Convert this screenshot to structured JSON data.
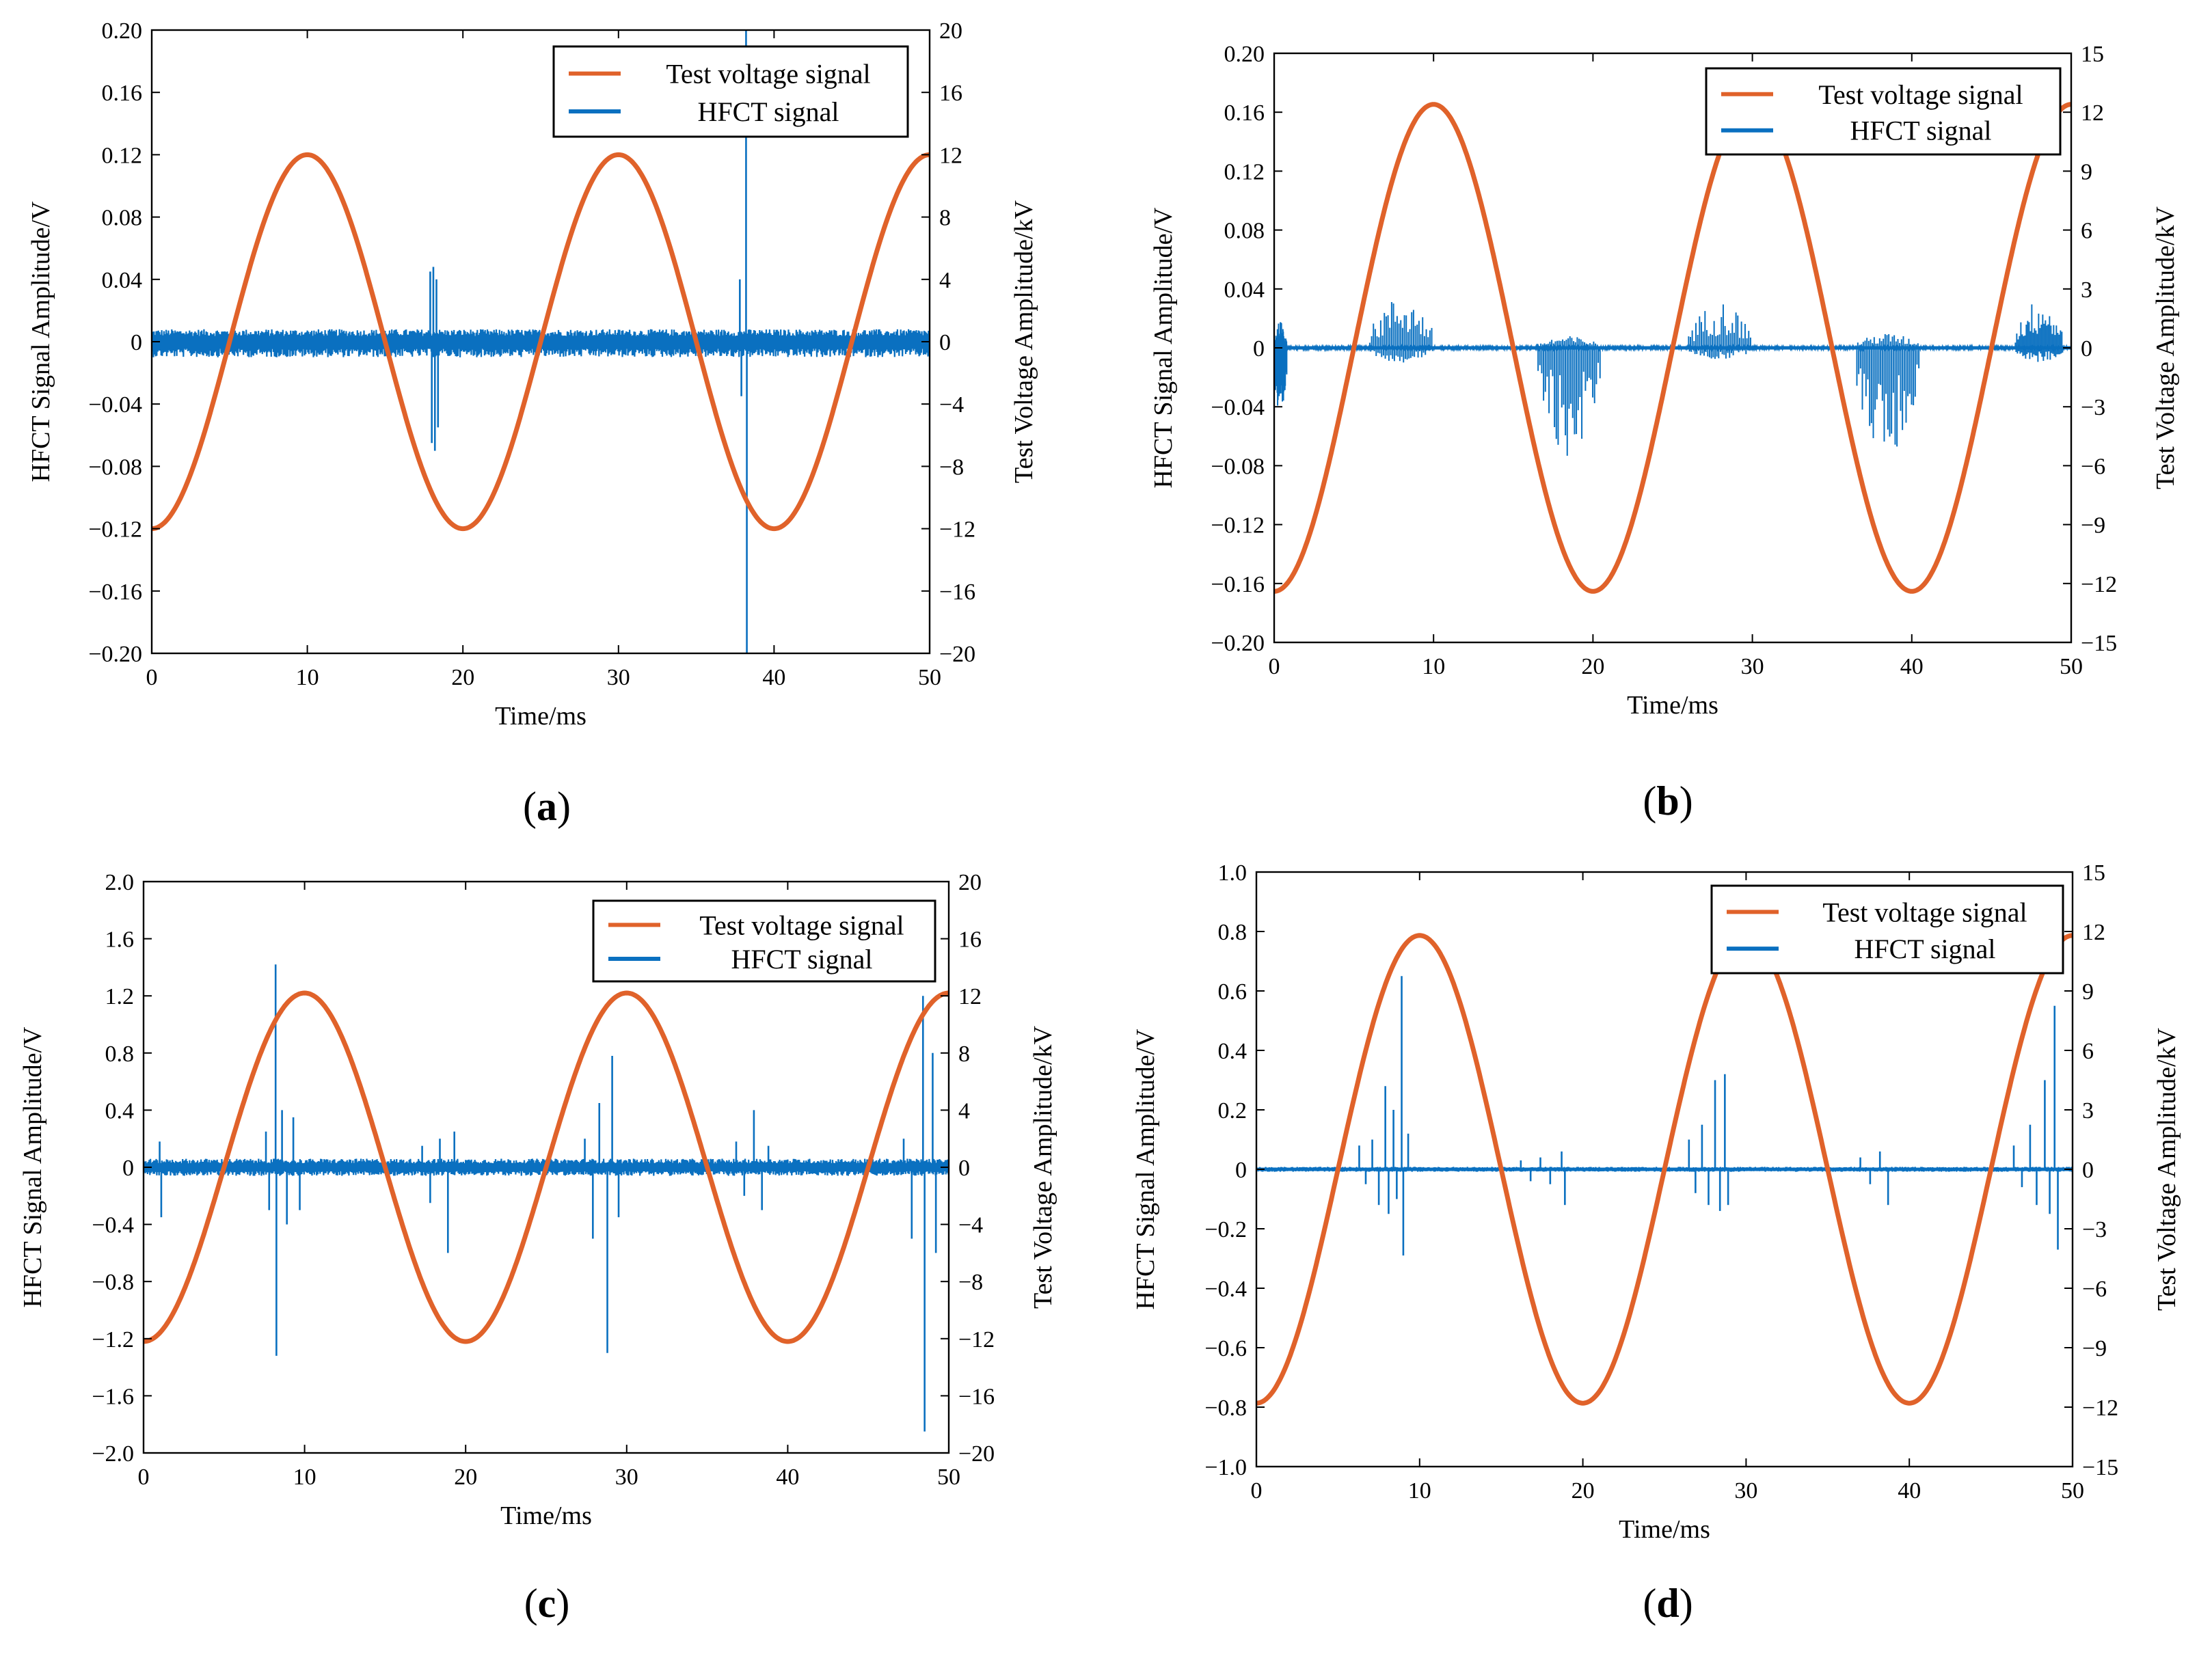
{
  "chart_data": [
    {
      "id": "a",
      "type": "line",
      "panel_label": "(a)",
      "panel_letter": "a",
      "xlabel": "Time/ms",
      "ylabel_left": "HFCT Signal Amplitude/V",
      "ylabel_right": "Test Voltage Amplitude/kV",
      "xlim": [
        0,
        50
      ],
      "ylim_left": [
        -0.2,
        0.2
      ],
      "ylim_right": [
        -20,
        20
      ],
      "xticks": [
        0,
        10,
        20,
        30,
        40,
        50
      ],
      "xtick_labels": [
        "0",
        "10",
        "20",
        "30",
        "40",
        "50"
      ],
      "yticks_left": [
        -0.2,
        -0.16,
        -0.12,
        -0.08,
        -0.04,
        0,
        0.04,
        0.08,
        0.12,
        0.16,
        0.2
      ],
      "ytick_labels_left": [
        "−0.20",
        "−0.16",
        "−0.12",
        "−0.08",
        "−0.04",
        "0",
        "0.04",
        "0.08",
        "0.12",
        "0.16",
        "0.20"
      ],
      "yticks_right": [
        -20,
        -16,
        -12,
        -8,
        -4,
        0,
        4,
        8,
        12,
        16,
        20
      ],
      "ytick_labels_right": [
        "−20",
        "−16",
        "−12",
        "−8",
        "−4",
        "0",
        "4",
        "8",
        "12",
        "16",
        "20"
      ],
      "legend": {
        "position": "top-right",
        "entries": [
          "Test voltage signal",
          "HFCT signal"
        ]
      },
      "series": [
        {
          "name": "Test voltage signal",
          "axis": "right",
          "color": "#E0622A",
          "kind": "sine",
          "amplitude_kV": 12,
          "period_ms": 20,
          "peak_at_ms": 10
        },
        {
          "name": "HFCT signal",
          "axis": "left",
          "color": "#0A70C0",
          "kind": "noise",
          "noise_band_V": [
            -0.01,
            0.008
          ],
          "pulses": [
            {
              "t_ms": 17.9,
              "amp_V": 0.045
            },
            {
              "t_ms": 18.0,
              "amp_V": -0.065
            },
            {
              "t_ms": 18.1,
              "amp_V": 0.048
            },
            {
              "t_ms": 18.2,
              "amp_V": -0.07
            },
            {
              "t_ms": 18.3,
              "amp_V": 0.04
            },
            {
              "t_ms": 18.4,
              "amp_V": -0.055
            },
            {
              "t_ms": 37.8,
              "amp_V": 0.04
            },
            {
              "t_ms": 37.9,
              "amp_V": -0.035
            },
            {
              "t_ms": 38.2,
              "amp_V": 0.2
            },
            {
              "t_ms": 38.25,
              "amp_V": -0.2
            }
          ]
        }
      ]
    },
    {
      "id": "b",
      "type": "line",
      "panel_label": "(b)",
      "panel_letter": "b",
      "xlabel": "Time/ms",
      "ylabel_left": "HFCT Signal Amplitude/V",
      "ylabel_right": "Test Voltage Amplitude/kV",
      "xlim": [
        0,
        50
      ],
      "ylim_left": [
        -0.2,
        0.2
      ],
      "ylim_right": [
        -15,
        15
      ],
      "xticks": [
        0,
        10,
        20,
        30,
        40,
        50
      ],
      "xtick_labels": [
        "0",
        "10",
        "20",
        "30",
        "40",
        "50"
      ],
      "yticks_left": [
        -0.2,
        -0.16,
        -0.12,
        -0.08,
        -0.04,
        0,
        0.04,
        0.08,
        0.12,
        0.16,
        0.2
      ],
      "ytick_labels_left": [
        "−0.20",
        "−0.16",
        "−0.12",
        "−0.08",
        "−0.04",
        "0",
        "0.04",
        "0.08",
        "0.12",
        "0.16",
        "0.20"
      ],
      "yticks_right": [
        -15,
        -12,
        -9,
        -6,
        -3,
        0,
        3,
        6,
        9,
        12,
        15
      ],
      "ytick_labels_right": [
        "−15",
        "−12",
        "−9",
        "−6",
        "−3",
        "0",
        "3",
        "6",
        "9",
        "12",
        "15"
      ],
      "legend": {
        "position": "top-right",
        "entries": [
          "Test voltage signal",
          "HFCT signal"
        ]
      },
      "series": [
        {
          "name": "Test voltage signal",
          "axis": "right",
          "color": "#E0622A",
          "kind": "sine",
          "amplitude_kV": 12.4,
          "period_ms": 20,
          "peak_at_ms": 10
        },
        {
          "name": "HFCT signal",
          "axis": "left",
          "color": "#0A70C0",
          "kind": "clusters",
          "noise_band_V": [
            -0.001,
            0.001
          ],
          "clusters": [
            {
              "start_ms": 0.0,
              "end_ms": 0.8,
              "pos_V": 0.018,
              "neg_V": -0.055
            },
            {
              "start_ms": 6.0,
              "end_ms": 10.0,
              "pos_V": 0.035,
              "neg_V": -0.01
            },
            {
              "start_ms": 16.5,
              "end_ms": 20.5,
              "pos_V": 0.008,
              "neg_V": -0.075
            },
            {
              "start_ms": 26.0,
              "end_ms": 30.0,
              "pos_V": 0.032,
              "neg_V": -0.008
            },
            {
              "start_ms": 36.5,
              "end_ms": 40.5,
              "pos_V": 0.01,
              "neg_V": -0.075
            },
            {
              "start_ms": 46.5,
              "end_ms": 49.5,
              "pos_V": 0.033,
              "neg_V": -0.01
            }
          ]
        }
      ]
    },
    {
      "id": "c",
      "type": "line",
      "panel_label": "(c)",
      "panel_letter": "c",
      "xlabel": "Time/ms",
      "ylabel_left": "HFCT Signal Amplitude/V",
      "ylabel_right": "Test Voltage Amplitude/kV",
      "xlim": [
        0,
        50
      ],
      "ylim_left": [
        -2.0,
        2.0
      ],
      "ylim_right": [
        -20,
        20
      ],
      "xticks": [
        0,
        10,
        20,
        30,
        40,
        50
      ],
      "xtick_labels": [
        "0",
        "10",
        "20",
        "30",
        "40",
        "50"
      ],
      "yticks_left": [
        -2.0,
        -1.6,
        -1.2,
        -0.8,
        -0.4,
        0,
        0.4,
        0.8,
        1.2,
        1.6,
        2.0
      ],
      "ytick_labels_left": [
        "−2.0",
        "−1.6",
        "−1.2",
        "−0.8",
        "−0.4",
        "0",
        "0.4",
        "0.8",
        "1.2",
        "1.6",
        "2.0"
      ],
      "yticks_right": [
        -20,
        -16,
        -12,
        -8,
        -4,
        0,
        4,
        8,
        12,
        16,
        20
      ],
      "ytick_labels_right": [
        "−20",
        "−16",
        "−12",
        "−8",
        "−4",
        "0",
        "4",
        "8",
        "12",
        "16",
        "20"
      ],
      "legend": {
        "position": "top-right",
        "entries": [
          "Test voltage signal",
          "HFCT signal"
        ]
      },
      "series": [
        {
          "name": "Test voltage signal",
          "axis": "right",
          "color": "#E0622A",
          "kind": "sine",
          "amplitude_kV": 12.2,
          "period_ms": 20,
          "peak_at_ms": 10
        },
        {
          "name": "HFCT signal",
          "axis": "left",
          "color": "#0A70C0",
          "kind": "noise",
          "noise_band_V": [
            -0.06,
            0.06
          ],
          "pulses": [
            {
              "t_ms": 1.0,
              "amp_V": 0.18
            },
            {
              "t_ms": 1.1,
              "amp_V": -0.35
            },
            {
              "t_ms": 7.6,
              "amp_V": 0.25
            },
            {
              "t_ms": 7.8,
              "amp_V": -0.3
            },
            {
              "t_ms": 8.2,
              "amp_V": 1.42
            },
            {
              "t_ms": 8.25,
              "amp_V": -1.32
            },
            {
              "t_ms": 8.6,
              "amp_V": 0.4
            },
            {
              "t_ms": 8.9,
              "amp_V": -0.4
            },
            {
              "t_ms": 9.3,
              "amp_V": 0.35
            },
            {
              "t_ms": 9.7,
              "amp_V": -0.3
            },
            {
              "t_ms": 17.3,
              "amp_V": 0.15
            },
            {
              "t_ms": 17.8,
              "amp_V": -0.25
            },
            {
              "t_ms": 18.4,
              "amp_V": 0.2
            },
            {
              "t_ms": 18.9,
              "amp_V": -0.6
            },
            {
              "t_ms": 19.3,
              "amp_V": 0.25
            },
            {
              "t_ms": 27.4,
              "amp_V": 0.2
            },
            {
              "t_ms": 27.9,
              "amp_V": -0.5
            },
            {
              "t_ms": 28.3,
              "amp_V": 0.45
            },
            {
              "t_ms": 28.8,
              "amp_V": -1.3
            },
            {
              "t_ms": 29.1,
              "amp_V": 0.78
            },
            {
              "t_ms": 29.5,
              "amp_V": -0.35
            },
            {
              "t_ms": 36.8,
              "amp_V": 0.18
            },
            {
              "t_ms": 37.3,
              "amp_V": -0.2
            },
            {
              "t_ms": 37.9,
              "amp_V": 0.4
            },
            {
              "t_ms": 38.4,
              "amp_V": -0.3
            },
            {
              "t_ms": 38.8,
              "amp_V": 0.15
            },
            {
              "t_ms": 47.2,
              "amp_V": 0.2
            },
            {
              "t_ms": 47.7,
              "amp_V": -0.5
            },
            {
              "t_ms": 48.4,
              "amp_V": 1.2
            },
            {
              "t_ms": 48.5,
              "amp_V": -1.85
            },
            {
              "t_ms": 49.0,
              "amp_V": 0.8
            },
            {
              "t_ms": 49.2,
              "amp_V": -0.6
            }
          ]
        }
      ]
    },
    {
      "id": "d",
      "type": "line",
      "panel_label": "(d)",
      "panel_letter": "d",
      "xlabel": "Time/ms",
      "ylabel_left": "HFCT Signal Amplitude/V",
      "ylabel_right": "Test Voltage Amplitude/kV",
      "xlim": [
        0,
        50
      ],
      "ylim_left": [
        -1.0,
        1.0
      ],
      "ylim_right": [
        -15,
        15
      ],
      "xticks": [
        0,
        10,
        20,
        30,
        40,
        50
      ],
      "xtick_labels": [
        "0",
        "10",
        "20",
        "30",
        "40",
        "50"
      ],
      "yticks_left": [
        -1.0,
        -0.8,
        -0.6,
        -0.4,
        -0.2,
        0,
        0.2,
        0.4,
        0.6,
        0.8,
        1.0
      ],
      "ytick_labels_left": [
        "−1.0",
        "−0.8",
        "−0.6",
        "−0.4",
        "−0.2",
        "0",
        "0.2",
        "0.4",
        "0.6",
        "0.8",
        "1.0"
      ],
      "yticks_right": [
        -15,
        -12,
        -9,
        -6,
        -3,
        0,
        3,
        6,
        9,
        12,
        15
      ],
      "ytick_labels_right": [
        "−15",
        "−12",
        "−9",
        "−6",
        "−3",
        "0",
        "3",
        "6",
        "9",
        "12",
        "15"
      ],
      "legend": {
        "position": "top-right",
        "entries": [
          "Test voltage signal",
          "HFCT signal"
        ]
      },
      "series": [
        {
          "name": "Test voltage signal",
          "axis": "right",
          "color": "#E0622A",
          "kind": "sine",
          "amplitude_kV": 11.8,
          "period_ms": 20,
          "peak_at_ms": 10
        },
        {
          "name": "HFCT signal",
          "axis": "left",
          "color": "#0A70C0",
          "kind": "noise",
          "noise_band_V": [
            -0.008,
            0.008
          ],
          "pulses": [
            {
              "t_ms": 6.3,
              "amp_V": 0.08
            },
            {
              "t_ms": 6.7,
              "amp_V": -0.05
            },
            {
              "t_ms": 7.1,
              "amp_V": 0.1
            },
            {
              "t_ms": 7.5,
              "amp_V": -0.12
            },
            {
              "t_ms": 7.9,
              "amp_V": 0.28
            },
            {
              "t_ms": 8.1,
              "amp_V": -0.15
            },
            {
              "t_ms": 8.4,
              "amp_V": 0.2
            },
            {
              "t_ms": 8.6,
              "amp_V": -0.1
            },
            {
              "t_ms": 8.9,
              "amp_V": 0.65
            },
            {
              "t_ms": 9.0,
              "amp_V": -0.29
            },
            {
              "t_ms": 9.3,
              "amp_V": 0.12
            },
            {
              "t_ms": 16.2,
              "amp_V": 0.03
            },
            {
              "t_ms": 16.8,
              "amp_V": -0.04
            },
            {
              "t_ms": 17.4,
              "amp_V": 0.04
            },
            {
              "t_ms": 18.0,
              "amp_V": -0.05
            },
            {
              "t_ms": 18.7,
              "amp_V": 0.06
            },
            {
              "t_ms": 18.9,
              "amp_V": -0.12
            },
            {
              "t_ms": 26.5,
              "amp_V": 0.1
            },
            {
              "t_ms": 26.9,
              "amp_V": -0.08
            },
            {
              "t_ms": 27.3,
              "amp_V": 0.15
            },
            {
              "t_ms": 27.7,
              "amp_V": -0.12
            },
            {
              "t_ms": 28.1,
              "amp_V": 0.3
            },
            {
              "t_ms": 28.4,
              "amp_V": -0.14
            },
            {
              "t_ms": 28.7,
              "amp_V": 0.32
            },
            {
              "t_ms": 28.9,
              "amp_V": -0.12
            },
            {
              "t_ms": 37.0,
              "amp_V": 0.04
            },
            {
              "t_ms": 37.6,
              "amp_V": -0.05
            },
            {
              "t_ms": 38.2,
              "amp_V": 0.06
            },
            {
              "t_ms": 38.7,
              "amp_V": -0.12
            },
            {
              "t_ms": 46.4,
              "amp_V": 0.08
            },
            {
              "t_ms": 46.9,
              "amp_V": -0.06
            },
            {
              "t_ms": 47.4,
              "amp_V": 0.15
            },
            {
              "t_ms": 47.8,
              "amp_V": -0.12
            },
            {
              "t_ms": 48.3,
              "amp_V": 0.3
            },
            {
              "t_ms": 48.6,
              "amp_V": -0.15
            },
            {
              "t_ms": 48.9,
              "amp_V": 0.55
            },
            {
              "t_ms": 49.1,
              "amp_V": -0.27
            }
          ]
        }
      ]
    }
  ]
}
